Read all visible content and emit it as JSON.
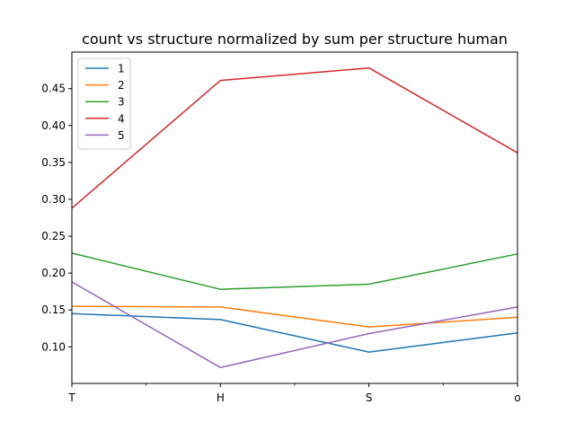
{
  "chart_data": {
    "type": "line",
    "title": "count vs structure normalized by sum per structure human",
    "xlabel": "",
    "ylabel": "",
    "x": [
      "T",
      "H",
      "S",
      "o"
    ],
    "ylim": [
      0.0505,
      0.4995
    ],
    "yticks": [
      0.1,
      0.15,
      0.2,
      0.25,
      0.3,
      0.35,
      0.4,
      0.45
    ],
    "ytick_labels": [
      "0.10",
      "0.15",
      "0.20",
      "0.25",
      "0.30",
      "0.35",
      "0.40",
      "0.45"
    ],
    "grid": false,
    "legend": "top-left",
    "series": [
      {
        "name": "1",
        "color": "#1f77b4",
        "values": [
          0.145,
          0.137,
          0.093,
          0.119
        ]
      },
      {
        "name": "2",
        "color": "#ff7f0e",
        "values": [
          0.155,
          0.154,
          0.127,
          0.14
        ]
      },
      {
        "name": "3",
        "color": "#2ca02c",
        "values": [
          0.227,
          0.178,
          0.185,
          0.226
        ]
      },
      {
        "name": "4",
        "color": "#d62728",
        "values": [
          0.288,
          0.461,
          0.478,
          0.363
        ]
      },
      {
        "name": "5",
        "color": "#9467bd",
        "values": [
          0.188,
          0.072,
          0.118,
          0.154
        ]
      }
    ]
  }
}
